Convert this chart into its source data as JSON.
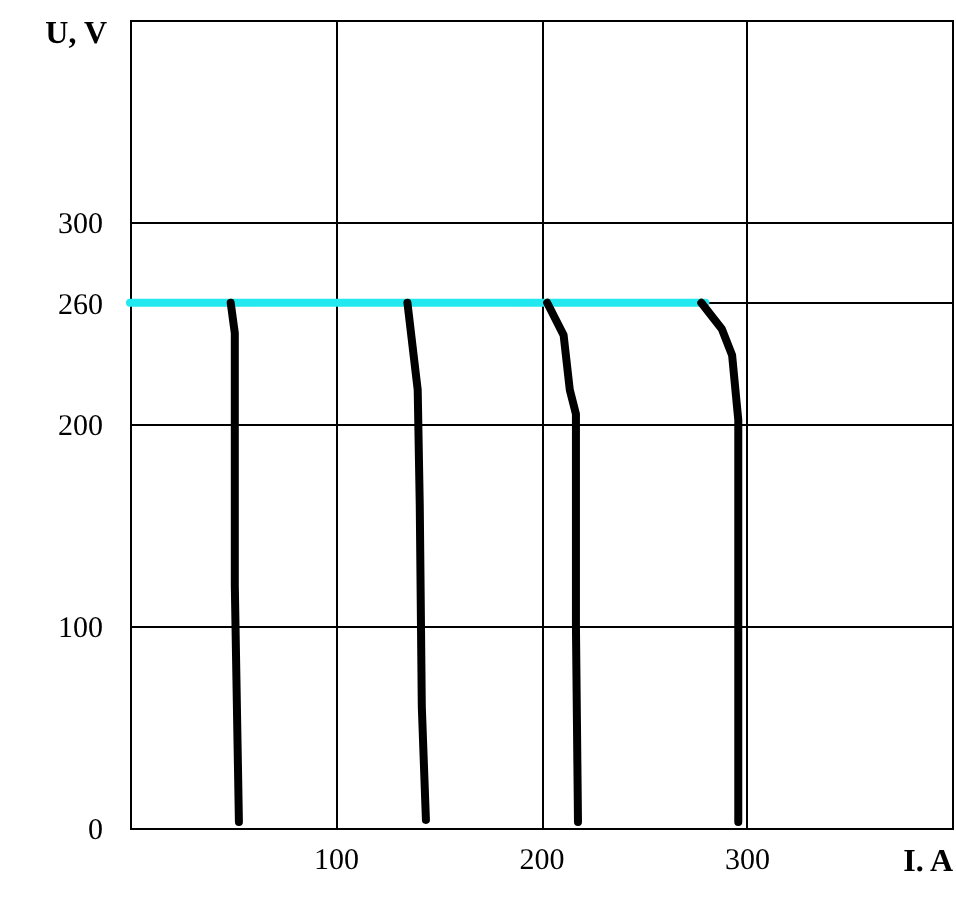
{
  "chart_data": {
    "type": "line",
    "xlabel": "I. A",
    "ylabel": "U, V",
    "xlim": [
      0,
      400
    ],
    "xticks": [
      100,
      200,
      300
    ],
    "ylim": [
      0,
      400
    ],
    "yticks": [
      0,
      100,
      200,
      260,
      300
    ],
    "grid": true,
    "line_style": "solid",
    "series": [
      {
        "color": "#22e8f0",
        "x": [
          0,
          280
        ],
        "values": [
          260,
          260
        ]
      },
      {
        "color": "#000000",
        "x": [
          49,
          51,
          51,
          53
        ],
        "values": [
          260,
          245,
          120,
          3
        ]
      },
      {
        "color": "#000000",
        "x": [
          135,
          140,
          141,
          142,
          144
        ],
        "values": [
          260,
          217,
          160,
          60,
          4
        ]
      },
      {
        "color": "#000000",
        "x": [
          203,
          211,
          214,
          217,
          217,
          218
        ],
        "values": [
          260,
          244,
          217,
          205,
          100,
          3
        ]
      },
      {
        "color": "#000000",
        "x": [
          278,
          288,
          293,
          296,
          296
        ],
        "values": [
          260,
          247,
          234,
          202,
          3
        ]
      }
    ]
  }
}
